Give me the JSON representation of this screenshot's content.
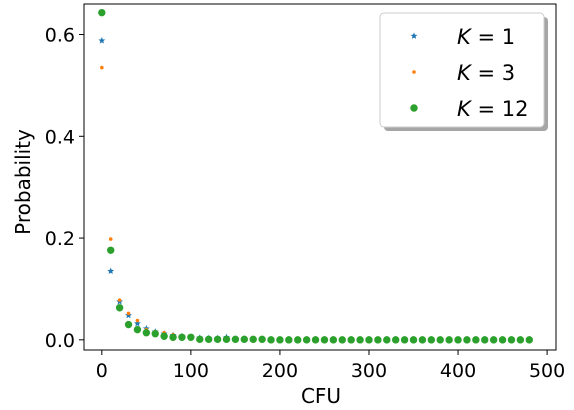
{
  "chart_data": {
    "type": "scatter",
    "xlabel": "CFU",
    "ylabel": "Probability",
    "xlim": [
      -20,
      510
    ],
    "ylim": [
      -0.02,
      0.66
    ],
    "xticks": [
      0,
      100,
      200,
      300,
      400,
      500
    ],
    "xtick_labels": [
      "0",
      "100",
      "200",
      "300",
      "400",
      "500"
    ],
    "yticks": [
      0.0,
      0.2,
      0.4,
      0.6
    ],
    "ytick_labels": [
      "0.0",
      "0.2",
      "0.4",
      "0.6"
    ],
    "grid": false,
    "legend_position": "top-right",
    "x": [
      0,
      10,
      20,
      30,
      40,
      50,
      60,
      70,
      80,
      90,
      100,
      110,
      120,
      130,
      140,
      150,
      160,
      170,
      180,
      190,
      200,
      210,
      220,
      230,
      240,
      250,
      260,
      270,
      280,
      290,
      300,
      310,
      320,
      330,
      340,
      350,
      360,
      370,
      380,
      390,
      400,
      410,
      420,
      430,
      440,
      450,
      460,
      470,
      480
    ],
    "series": [
      {
        "name": "K = 1",
        "legend_var": "K",
        "legend_val": "1",
        "marker": "star",
        "color": "#1f77b4",
        "values": [
          0.588,
          0.135,
          0.075,
          0.048,
          0.032,
          0.022,
          0.016,
          0.012,
          0.009,
          0.007,
          0.005,
          0.004,
          0.003,
          0.003,
          0.005,
          0.002,
          0.002,
          0.001,
          0.001,
          0.001,
          0.001,
          0.001,
          0.001,
          0.001,
          0.001,
          0.001,
          0.001,
          0.001,
          0.001,
          0.001,
          0.001,
          0.001,
          0.001,
          0.001,
          0.001,
          0.001,
          0.001,
          0.001,
          0.001,
          0.001,
          0.001,
          0.001,
          0.001,
          0.001,
          0.001,
          0.001,
          0.001,
          0.001,
          0.001
        ]
      },
      {
        "name": "K = 3",
        "legend_var": "K",
        "legend_val": "3",
        "marker": "small-dot",
        "color": "#ff7f0e",
        "values": [
          0.535,
          0.198,
          0.078,
          0.052,
          0.038,
          0.02,
          0.016,
          0.014,
          0.01,
          0.008,
          0.006,
          0.004,
          0.003,
          0.003,
          0.002,
          0.002,
          0.002,
          0.001,
          0.001,
          0.001,
          0.001,
          0.001,
          0.001,
          0.001,
          0.001,
          0.001,
          0.001,
          0.001,
          0.001,
          0.001,
          0.001,
          0.001,
          0.001,
          0.001,
          0.001,
          0.001,
          0.001,
          0.001,
          0.001,
          0.001,
          0.001,
          0.001,
          0.001,
          0.001,
          0.001,
          0.001,
          0.001,
          0.001,
          0.001
        ]
      },
      {
        "name": "K = 12",
        "legend_var": "K",
        "legend_val": "12",
        "marker": "circle",
        "color": "#2ca02c",
        "values": [
          0.643,
          0.176,
          0.063,
          0.03,
          0.02,
          0.014,
          0.012,
          0.007,
          0.005,
          0.005,
          0.005,
          0.001,
          0.001,
          0.001,
          0.001,
          0.001,
          0.001,
          0.001,
          0.001,
          0.0,
          0.0,
          0.0,
          0.0,
          0.0,
          0.0,
          0.0,
          0.0,
          0.0,
          0.0,
          0.0,
          0.0,
          0.0,
          0.0,
          0.0,
          0.0,
          0.0,
          0.0,
          0.0,
          0.0,
          0.0,
          0.0,
          0.0,
          0.0,
          0.0,
          0.0,
          0.0,
          0.0,
          0.0,
          0.0
        ]
      }
    ]
  }
}
